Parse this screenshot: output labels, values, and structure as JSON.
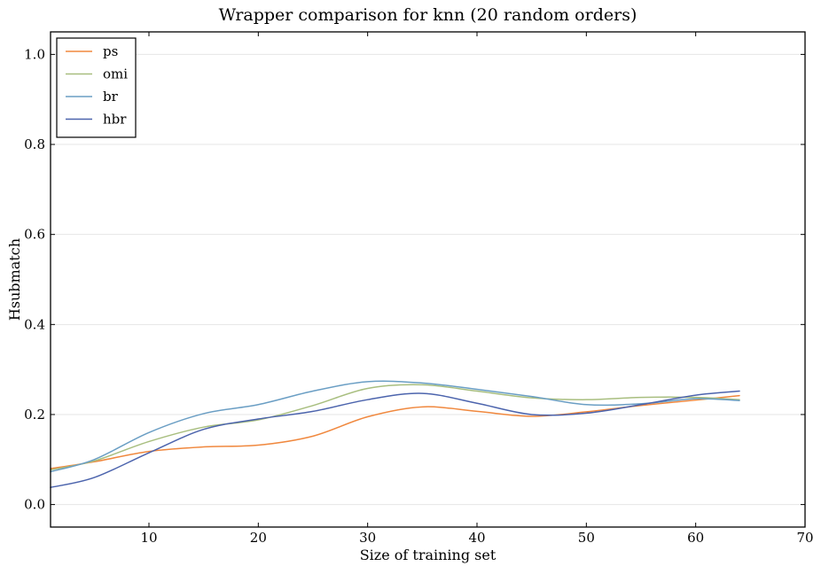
{
  "chart_data": {
    "type": "line",
    "title": "Wrapper comparison for knn (20 random orders)",
    "xlabel": "Size of training set",
    "ylabel": "Hsubmatch",
    "xlim": [
      1,
      70
    ],
    "ylim": [
      -0.05,
      1.05
    ],
    "xticks": [
      10,
      20,
      30,
      40,
      50,
      60,
      70
    ],
    "yticks": [
      0.0,
      0.2,
      0.4,
      0.6,
      0.8,
      1.0
    ],
    "xtick_labels": [
      "10",
      "20",
      "30",
      "40",
      "50",
      "60",
      "70"
    ],
    "ytick_labels": [
      "0.0",
      "0.2",
      "0.4",
      "0.6",
      "0.8",
      "1.0"
    ],
    "grid": "horizontal",
    "legend_position": "top-left",
    "series": [
      {
        "name": "ps",
        "color": "#f0883e",
        "x": [
          1,
          5,
          10,
          15,
          20,
          25,
          30,
          35,
          40,
          45,
          50,
          55,
          60,
          64
        ],
        "y": [
          0.08,
          0.095,
          0.118,
          0.128,
          0.132,
          0.152,
          0.195,
          0.217,
          0.207,
          0.196,
          0.206,
          0.22,
          0.232,
          0.242
        ]
      },
      {
        "name": "omi",
        "color": "#a8be7f",
        "x": [
          1,
          5,
          10,
          15,
          20,
          25,
          30,
          35,
          40,
          45,
          50,
          55,
          60,
          64
        ],
        "y": [
          0.077,
          0.097,
          0.14,
          0.172,
          0.188,
          0.22,
          0.258,
          0.266,
          0.252,
          0.237,
          0.233,
          0.238,
          0.238,
          0.233
        ]
      },
      {
        "name": "br",
        "color": "#6a9ec4",
        "x": [
          1,
          5,
          10,
          15,
          20,
          25,
          30,
          35,
          40,
          45,
          50,
          55,
          60,
          64
        ],
        "y": [
          0.073,
          0.1,
          0.16,
          0.202,
          0.222,
          0.252,
          0.273,
          0.27,
          0.256,
          0.24,
          0.222,
          0.224,
          0.235,
          0.231
        ]
      },
      {
        "name": "hbr",
        "color": "#4c64ad",
        "x": [
          1,
          5,
          10,
          15,
          20,
          25,
          30,
          35,
          40,
          45,
          50,
          55,
          60,
          64
        ],
        "y": [
          0.038,
          0.06,
          0.115,
          0.167,
          0.19,
          0.207,
          0.233,
          0.247,
          0.225,
          0.2,
          0.203,
          0.222,
          0.243,
          0.252
        ]
      }
    ]
  }
}
